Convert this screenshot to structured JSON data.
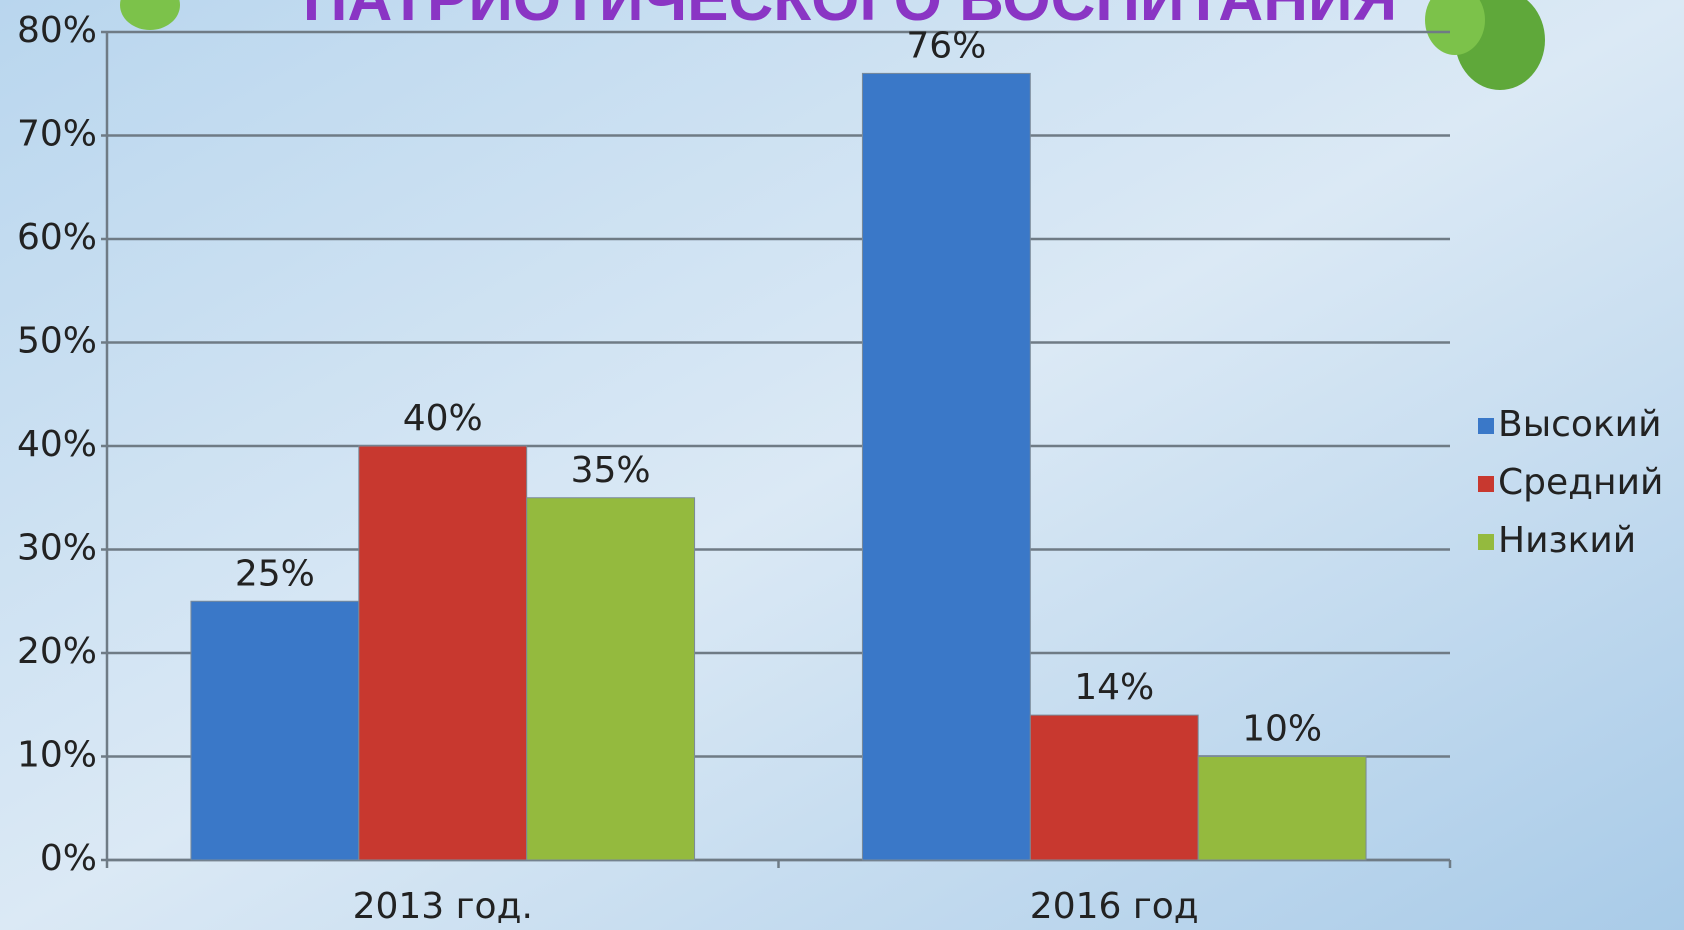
{
  "chart_data": {
    "type": "bar",
    "title": "ПАТРИОТИЧЕСКОГО ВОСПИТАНИЯ",
    "categories": [
      "2013 год.",
      "2016 год"
    ],
    "series": [
      {
        "name": "Высокий",
        "color": "#3a78c8",
        "values": [
          25,
          76
        ],
        "value_labels": [
          "25%",
          "76%"
        ]
      },
      {
        "name": "Средний",
        "color": "#c8382f",
        "values": [
          40,
          14
        ],
        "value_labels": [
          "40%",
          "14%"
        ]
      },
      {
        "name": "Низкий",
        "color": "#94ba3e",
        "values": [
          35,
          10
        ],
        "value_labels": [
          "35%",
          "10%"
        ]
      }
    ],
    "ylim": [
      0,
      80
    ],
    "yticks": [
      {
        "value": 0,
        "label": "0%"
      },
      {
        "value": 10,
        "label": "10%"
      },
      {
        "value": 20,
        "label": "20%"
      },
      {
        "value": 30,
        "label": "30%"
      },
      {
        "value": 40,
        "label": "40%"
      },
      {
        "value": 50,
        "label": "50%"
      },
      {
        "value": 60,
        "label": "60%"
      },
      {
        "value": 70,
        "label": "70%"
      },
      {
        "value": 80,
        "label": "80%"
      }
    ],
    "grid": true,
    "legend": "right"
  }
}
